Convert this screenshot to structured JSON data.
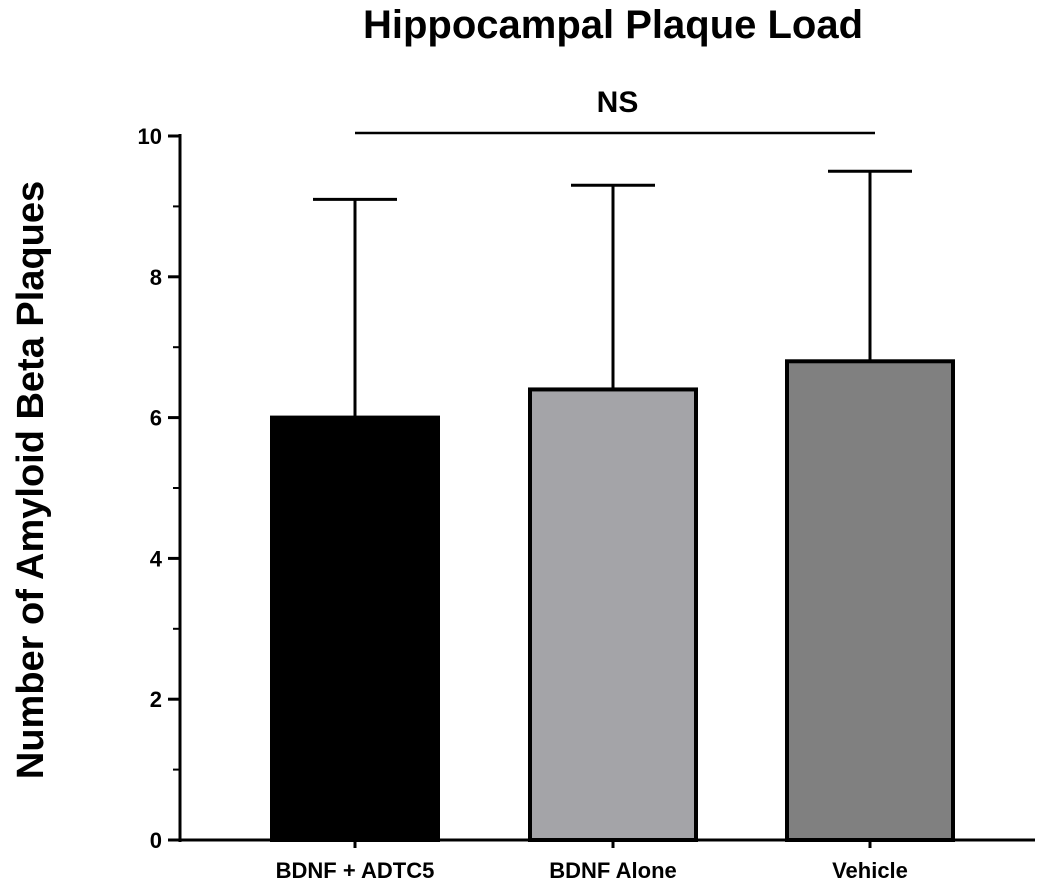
{
  "chart_data": {
    "type": "bar",
    "title": "Hippocampal Plaque Load",
    "xlabel": "",
    "ylabel": "Number of Amyloid Beta Plaques",
    "categories": [
      "BDNF + ADTC5",
      "BDNF Alone",
      "Vehicle"
    ],
    "values": [
      6.0,
      6.4,
      6.8
    ],
    "error_upper": [
      9.1,
      9.3,
      9.5
    ],
    "colors": [
      "#000000",
      "#a4a4a8",
      "#808080"
    ],
    "ylim": [
      0,
      10
    ],
    "yticks": [
      "0",
      "2",
      "4",
      "6",
      "8",
      "10"
    ],
    "grid": false,
    "legend": "none",
    "annotation": {
      "text": "NS",
      "from_category": "BDNF + ADTC5",
      "to_category": "Vehicle"
    }
  }
}
